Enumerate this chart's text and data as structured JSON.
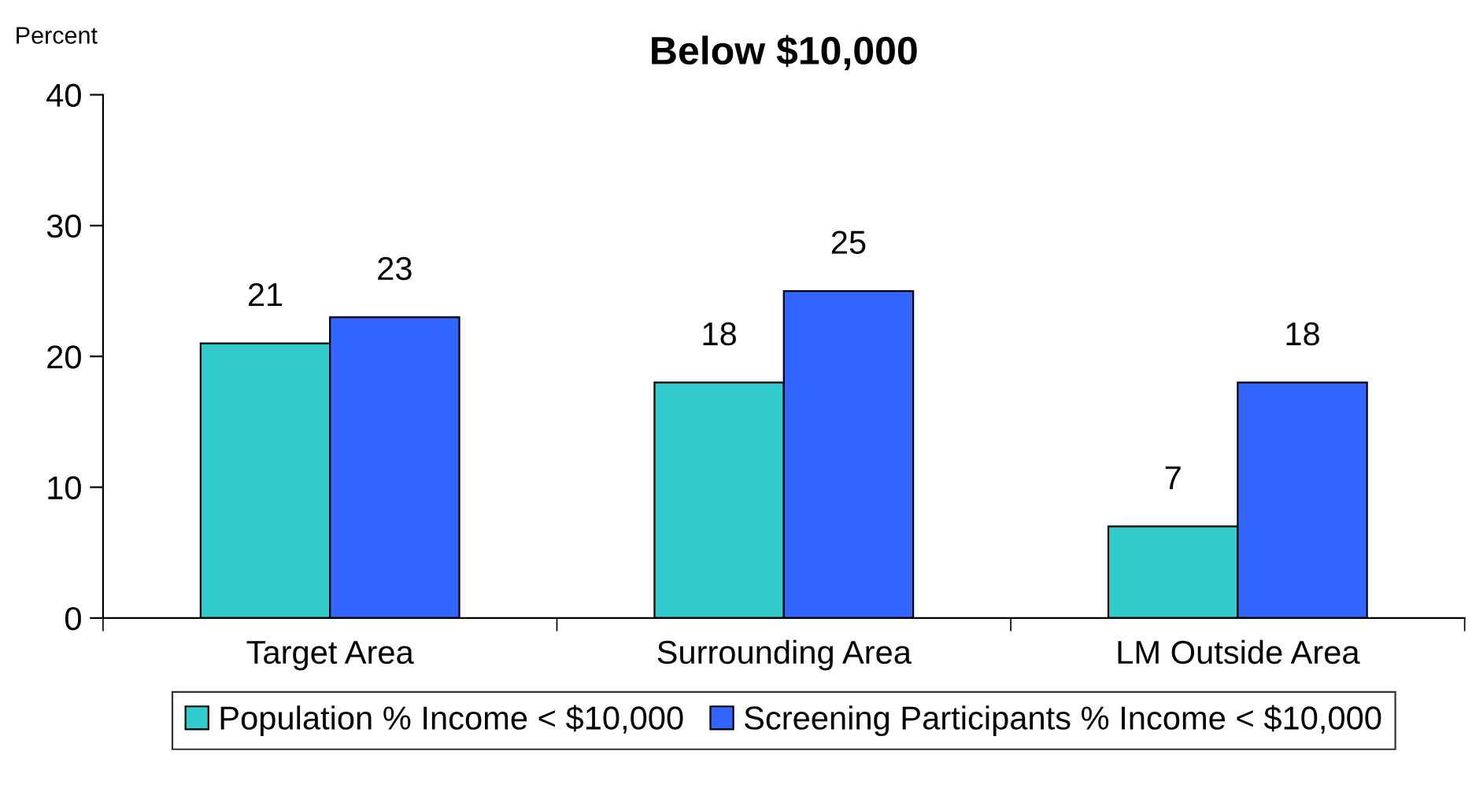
{
  "chart_data": {
    "type": "bar",
    "title": "Below $10,000",
    "ylabel": "Percent",
    "categories": [
      "Target Area",
      "Surrounding Area",
      "LM Outside Area"
    ],
    "series": [
      {
        "name": "Population % Income < $10,000",
        "color": "#33cccc",
        "values": [
          21,
          18,
          7
        ]
      },
      {
        "name": "Screening Participants % Income < $10,000",
        "color": "#3366ff",
        "values": [
          23,
          25,
          18
        ]
      }
    ],
    "ylim": [
      0,
      40
    ],
    "yticks": [
      0,
      10,
      20,
      30,
      40
    ],
    "grid": false,
    "data_labels": true,
    "legend": "bottom"
  }
}
